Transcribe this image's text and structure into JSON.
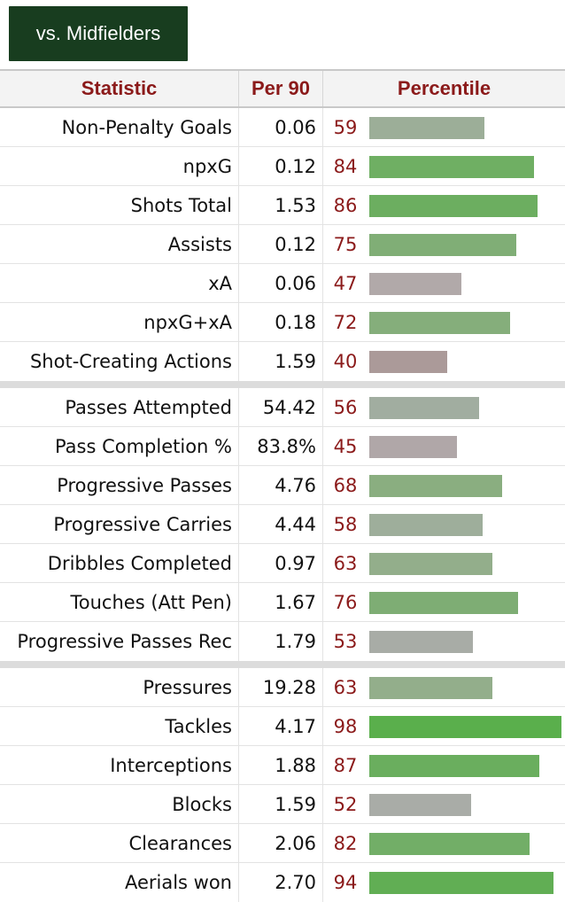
{
  "button": {
    "label": "vs. Midfielders"
  },
  "header": {
    "statistic": "Statistic",
    "per90": "Per 90",
    "percentile": "Percentile"
  },
  "sections": [
    {
      "rows": [
        {
          "statistic": "Non-Penalty Goals",
          "per90": "0.06",
          "percentile": 59,
          "color": "#9cae98"
        },
        {
          "statistic": "npxG",
          "per90": "0.12",
          "percentile": 84,
          "color": "#6faf63"
        },
        {
          "statistic": "Shots Total",
          "per90": "1.53",
          "percentile": 86,
          "color": "#6cae60"
        },
        {
          "statistic": "Assists",
          "per90": "0.12",
          "percentile": 75,
          "color": "#80ae76"
        },
        {
          "statistic": "xA",
          "per90": "0.06",
          "percentile": 47,
          "color": "#b1a9a9"
        },
        {
          "statistic": "npxG+xA",
          "per90": "0.18",
          "percentile": 72,
          "color": "#85ae7b"
        },
        {
          "statistic": "Shot-Creating Actions",
          "per90": "1.59",
          "percentile": 40,
          "color": "#ab9a99"
        }
      ]
    },
    {
      "rows": [
        {
          "statistic": "Passes Attempted",
          "per90": "54.42",
          "percentile": 56,
          "color": "#a1ada0"
        },
        {
          "statistic": "Pass Completion %",
          "per90": "83.8%",
          "percentile": 45,
          "color": "#b0a7a8"
        },
        {
          "statistic": "Progressive Passes",
          "per90": "4.76",
          "percentile": 68,
          "color": "#8aae80"
        },
        {
          "statistic": "Progressive Carries",
          "per90": "4.44",
          "percentile": 58,
          "color": "#9eae9b"
        },
        {
          "statistic": "Dribbles Completed",
          "per90": "0.97",
          "percentile": 63,
          "color": "#93ae8b"
        },
        {
          "statistic": "Touches (Att Pen)",
          "per90": "1.67",
          "percentile": 76,
          "color": "#7ead74"
        },
        {
          "statistic": "Progressive Passes Rec",
          "per90": "1.79",
          "percentile": 53,
          "color": "#a8aca6"
        }
      ]
    },
    {
      "rows": [
        {
          "statistic": "Pressures",
          "per90": "19.28",
          "percentile": 63,
          "color": "#93ae8b"
        },
        {
          "statistic": "Tackles",
          "per90": "4.17",
          "percentile": 98,
          "color": "#5aaf4c"
        },
        {
          "statistic": "Interceptions",
          "per90": "1.88",
          "percentile": 87,
          "color": "#6aae5e"
        },
        {
          "statistic": "Blocks",
          "per90": "1.59",
          "percentile": 52,
          "color": "#a9aca7"
        },
        {
          "statistic": "Clearances",
          "per90": "2.06",
          "percentile": 82,
          "color": "#72ae67"
        },
        {
          "statistic": "Aerials won",
          "per90": "2.70",
          "percentile": 94,
          "color": "#61ae54"
        }
      ]
    }
  ]
}
